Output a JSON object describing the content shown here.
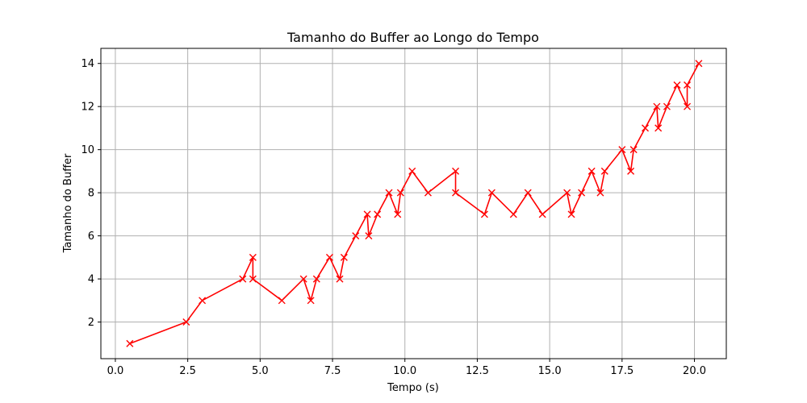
{
  "chart_data": {
    "type": "line",
    "title": "Tamanho do Buffer ao Longo do Tempo",
    "xlabel": "Tempo (s)",
    "ylabel": "Tamanho do Buffer",
    "xlim": [
      -0.5,
      21.1
    ],
    "ylim": [
      0.3,
      14.7
    ],
    "xticks": [
      0.0,
      2.5,
      5.0,
      7.5,
      10.0,
      12.5,
      15.0,
      17.5,
      20.0
    ],
    "xtick_labels": [
      "0.0",
      "2.5",
      "5.0",
      "7.5",
      "10.0",
      "12.5",
      "15.0",
      "17.5",
      "20.0"
    ],
    "yticks": [
      2,
      4,
      6,
      8,
      10,
      12,
      14
    ],
    "ytick_labels": [
      "2",
      "4",
      "6",
      "8",
      "10",
      "12",
      "14"
    ],
    "grid": true,
    "color": "#ff0000",
    "marker": "x",
    "series": [
      {
        "x": [
          0.5,
          2.45,
          3.0,
          4.4,
          4.75,
          4.75,
          5.75,
          6.5,
          6.75,
          6.95,
          7.4,
          7.75,
          7.9,
          8.3,
          8.7,
          8.75,
          9.05,
          9.45,
          9.75,
          9.85,
          10.25,
          10.8,
          11.75,
          11.75,
          12.75,
          13.0,
          13.75,
          14.25,
          14.75,
          15.6,
          15.75,
          16.1,
          16.45,
          16.75,
          16.9,
          17.5,
          17.8,
          17.9,
          18.3,
          18.7,
          18.75,
          19.05,
          19.4,
          19.75,
          19.75,
          20.15
        ],
        "y": [
          1,
          2,
          3,
          4,
          5,
          4,
          3,
          4,
          3,
          4,
          5,
          4,
          5,
          6,
          7,
          6,
          7,
          8,
          7,
          8,
          9,
          8,
          9,
          8,
          7,
          8,
          7,
          8,
          7,
          8,
          7,
          8,
          9,
          8,
          9,
          10,
          9,
          10,
          11,
          12,
          11,
          12,
          13,
          12,
          13,
          14
        ]
      }
    ]
  }
}
